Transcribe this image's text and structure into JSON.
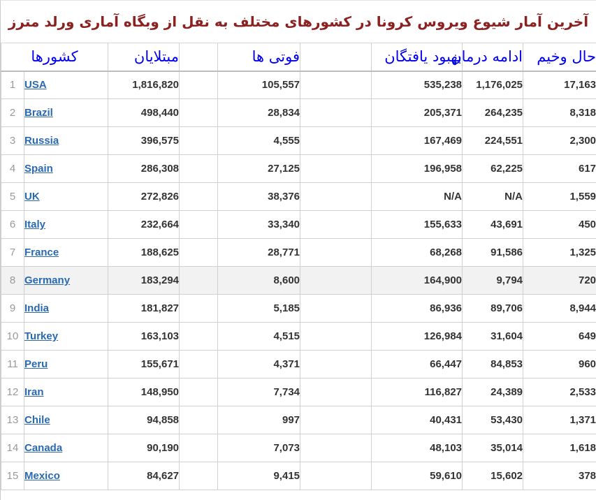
{
  "title": "آخرین آمار شیوع ویروس کرونا در کشورهای مختلف به نقل از وبگاه آماری ورلد مترز",
  "colors": {
    "title_text": "#8b2121",
    "header_text": "#0000ee",
    "country_link": "#2a69b0",
    "number_text": "#333333",
    "rank_text": "#999999",
    "grid_border": "#d0d0d0",
    "highlight_row_bg": "#f2f2f2"
  },
  "chart_data": {
    "type": "table",
    "title": "آخرین آمار شیوع ویروس کرونا در کشورهای مختلف به نقل از وبگاه آماری ورلد مترز",
    "headers": {
      "countries": "کشورها",
      "cases": "مبتلایان",
      "deaths": "فوتی ها",
      "recovered": "بهبود یافتگان",
      "active": "ادامه درمان",
      "critical": "حال وخیم"
    },
    "rows": [
      {
        "rank": "1",
        "country": "USA",
        "cases": "1,816,820",
        "deaths": "105,557",
        "recovered": "535,238",
        "active": "1,176,025",
        "critical": "17,163",
        "highlighted": false
      },
      {
        "rank": "2",
        "country": "Brazil",
        "cases": "498,440",
        "deaths": "28,834",
        "recovered": "205,371",
        "active": "264,235",
        "critical": "8,318",
        "highlighted": false
      },
      {
        "rank": "3",
        "country": "Russia",
        "cases": "396,575",
        "deaths": "4,555",
        "recovered": "167,469",
        "active": "224,551",
        "critical": "2,300",
        "highlighted": false
      },
      {
        "rank": "4",
        "country": "Spain",
        "cases": "286,308",
        "deaths": "27,125",
        "recovered": "196,958",
        "active": "62,225",
        "critical": "617",
        "highlighted": false
      },
      {
        "rank": "5",
        "country": "UK",
        "cases": "272,826",
        "deaths": "38,376",
        "recovered": "N/A",
        "active": "N/A",
        "critical": "1,559",
        "highlighted": false
      },
      {
        "rank": "6",
        "country": "Italy",
        "cases": "232,664",
        "deaths": "33,340",
        "recovered": "155,633",
        "active": "43,691",
        "critical": "450",
        "highlighted": false
      },
      {
        "rank": "7",
        "country": "France",
        "cases": "188,625",
        "deaths": "28,771",
        "recovered": "68,268",
        "active": "91,586",
        "critical": "1,325",
        "highlighted": false
      },
      {
        "rank": "8",
        "country": "Germany",
        "cases": "183,294",
        "deaths": "8,600",
        "recovered": "164,900",
        "active": "9,794",
        "critical": "720",
        "highlighted": true
      },
      {
        "rank": "9",
        "country": "India",
        "cases": "181,827",
        "deaths": "5,185",
        "recovered": "86,936",
        "active": "89,706",
        "critical": "8,944",
        "highlighted": false
      },
      {
        "rank": "10",
        "country": "Turkey",
        "cases": "163,103",
        "deaths": "4,515",
        "recovered": "126,984",
        "active": "31,604",
        "critical": "649",
        "highlighted": false
      },
      {
        "rank": "11",
        "country": "Peru",
        "cases": "155,671",
        "deaths": "4,371",
        "recovered": "66,447",
        "active": "84,853",
        "critical": "960",
        "highlighted": false
      },
      {
        "rank": "12",
        "country": "Iran",
        "cases": "148,950",
        "deaths": "7,734",
        "recovered": "116,827",
        "active": "24,389",
        "critical": "2,533",
        "highlighted": false
      },
      {
        "rank": "13",
        "country": "Chile",
        "cases": "94,858",
        "deaths": "997",
        "recovered": "40,431",
        "active": "53,430",
        "critical": "1,371",
        "highlighted": false
      },
      {
        "rank": "14",
        "country": "Canada",
        "cases": "90,190",
        "deaths": "7,073",
        "recovered": "48,103",
        "active": "35,014",
        "critical": "1,618",
        "highlighted": false
      },
      {
        "rank": "15",
        "country": "Mexico",
        "cases": "84,627",
        "deaths": "9,415",
        "recovered": "59,610",
        "active": "15,602",
        "critical": "378",
        "highlighted": false
      }
    ]
  }
}
